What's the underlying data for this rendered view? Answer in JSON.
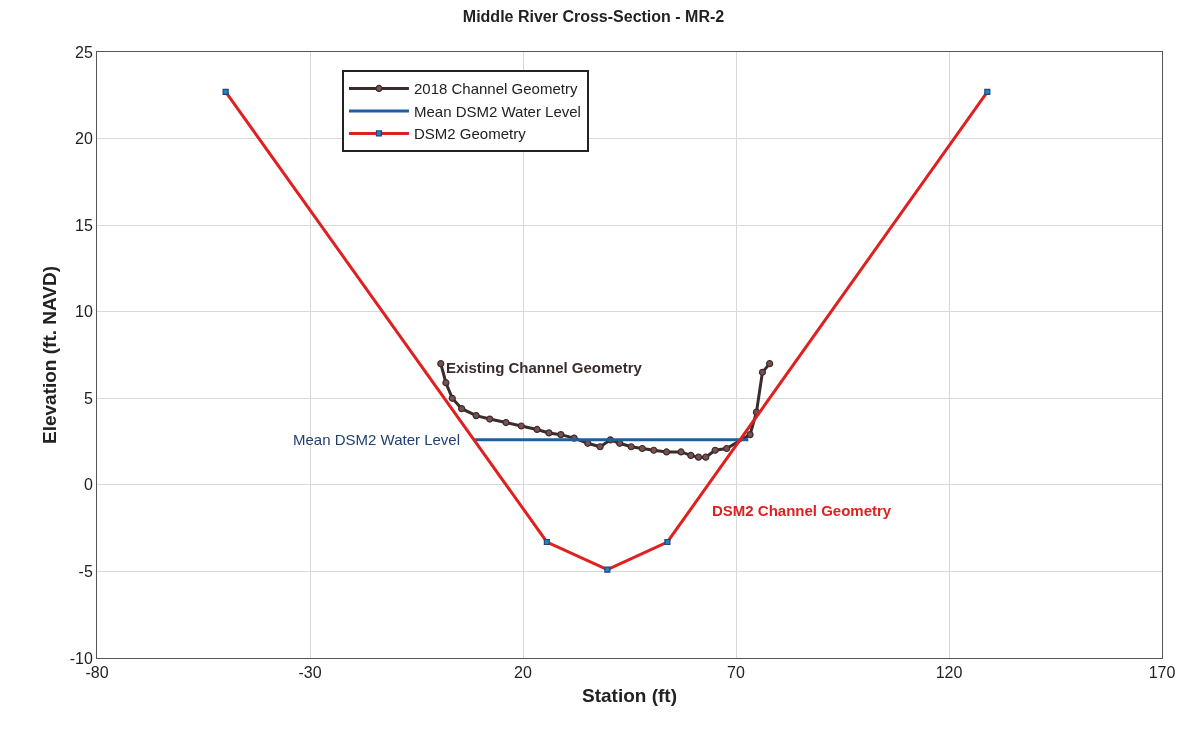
{
  "chart_data": {
    "type": "line",
    "title": "Middle River Cross-Section - MR-2",
    "xlabel": "Station (ft)",
    "ylabel": "Elevation (ft. NAVD)",
    "xlim": [
      -80,
      170
    ],
    "xticks": [
      -80,
      -30,
      20,
      70,
      120,
      170
    ],
    "ylim": [
      -10,
      25
    ],
    "yticks": [
      -10,
      -5,
      0,
      5,
      10,
      15,
      20,
      25
    ],
    "grid": true,
    "legend": "top left",
    "series": [
      {
        "name": "2018 Channel Geometry",
        "color": "#3a2c2c",
        "marker": "circle",
        "x": [
          0.7,
          1.9,
          3.4,
          5.6,
          9.0,
          12.2,
          16.0,
          19.6,
          23.3,
          26.1,
          28.9,
          32.0,
          35.2,
          38.1,
          40.5,
          42.7,
          45.4,
          48.0,
          50.7,
          53.7,
          57.1,
          59.4,
          61.2,
          62.9,
          65.1,
          67.8,
          73.3,
          74.8,
          76.2,
          77.9
        ],
        "values": [
          7.0,
          5.9,
          5.0,
          4.4,
          4.0,
          3.8,
          3.6,
          3.4,
          3.2,
          3.0,
          2.9,
          2.7,
          2.4,
          2.2,
          2.6,
          2.4,
          2.2,
          2.1,
          2.0,
          1.9,
          1.9,
          1.7,
          1.6,
          1.6,
          2.0,
          2.1,
          2.9,
          4.2,
          6.5,
          7.0
        ]
      },
      {
        "name": "Mean DSM2 Water Level",
        "color": "#1f5f9f",
        "marker": "none",
        "x": [
          8.5,
          72.9
        ],
        "values": [
          2.6,
          2.6
        ]
      },
      {
        "name": "DSM2 Geometry",
        "color": "#e02020",
        "marker": "square",
        "x": [
          -49.8,
          25.6,
          39.8,
          53.9,
          129.0
        ],
        "values": [
          22.7,
          -3.3,
          -4.9,
          -3.3,
          22.7
        ]
      }
    ],
    "annotations": [
      {
        "text": "Existing Channel Geometry",
        "x": 1.5,
        "y": 6.8
      },
      "Mean DSM2 Water Level",
      "DSM2 Channel Geometry"
    ]
  }
}
